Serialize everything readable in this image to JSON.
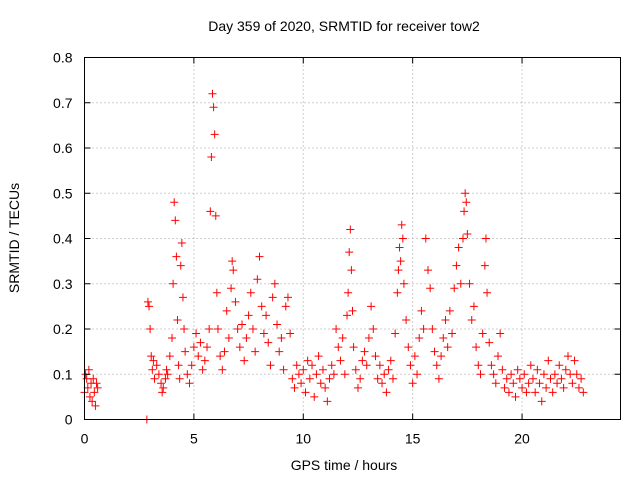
{
  "chart_data": {
    "type": "scatter",
    "title": "Day 359 of 2020, SRMTID for receiver tow2",
    "xlabel": "GPS time / hours",
    "ylabel": "SRMTID / TECUs",
    "xlim": [
      0,
      24.5
    ],
    "ylim": [
      0,
      0.8
    ],
    "x_ticks": [
      {
        "value": 0,
        "label": "0"
      },
      {
        "value": 5,
        "label": "5"
      },
      {
        "value": 10,
        "label": "10"
      },
      {
        "value": 15,
        "label": "15"
      },
      {
        "value": 20,
        "label": "20"
      }
    ],
    "y_ticks": [
      {
        "value": 0,
        "label": "0"
      },
      {
        "value": 0.1,
        "label": "0.1"
      },
      {
        "value": 0.2,
        "label": "0.2"
      },
      {
        "value": 0.3,
        "label": "0.3"
      },
      {
        "value": 0.4,
        "label": "0.4"
      },
      {
        "value": 0.5,
        "label": "0.5"
      },
      {
        "value": 0.6,
        "label": "0.6"
      },
      {
        "value": 0.7,
        "label": "0.7"
      },
      {
        "value": 0.8,
        "label": "0.8"
      }
    ],
    "grid": true,
    "marker": "plus",
    "series": [
      {
        "name": "SRMTID",
        "color": "#ff0000",
        "points": [
          [
            0.0,
            0.06
          ],
          [
            0.05,
            0.1
          ],
          [
            0.1,
            0.09
          ],
          [
            0.15,
            0.07
          ],
          [
            0.2,
            0.11
          ],
          [
            0.25,
            0.05
          ],
          [
            0.3,
            0.08
          ],
          [
            0.35,
            0.04
          ],
          [
            0.4,
            0.09
          ],
          [
            0.45,
            0.06
          ],
          [
            0.5,
            0.03
          ],
          [
            0.55,
            0.08
          ],
          [
            0.6,
            0.07
          ],
          [
            2.85,
            0.0
          ],
          [
            2.9,
            0.26
          ],
          [
            2.95,
            0.25
          ],
          [
            3.0,
            0.2
          ],
          [
            3.05,
            0.14
          ],
          [
            3.1,
            0.11
          ],
          [
            3.15,
            0.13
          ],
          [
            3.2,
            0.09
          ],
          [
            3.3,
            0.12
          ],
          [
            3.4,
            0.1
          ],
          [
            3.5,
            0.08
          ],
          [
            3.55,
            0.06
          ],
          [
            3.6,
            0.07
          ],
          [
            3.7,
            0.09
          ],
          [
            3.75,
            0.11
          ],
          [
            3.8,
            0.1
          ],
          [
            3.9,
            0.14
          ],
          [
            4.0,
            0.18
          ],
          [
            4.05,
            0.3
          ],
          [
            4.1,
            0.48
          ],
          [
            4.15,
            0.44
          ],
          [
            4.2,
            0.36
          ],
          [
            4.25,
            0.22
          ],
          [
            4.3,
            0.12
          ],
          [
            4.35,
            0.09
          ],
          [
            4.4,
            0.34
          ],
          [
            4.45,
            0.39
          ],
          [
            4.5,
            0.27
          ],
          [
            4.55,
            0.2
          ],
          [
            4.6,
            0.15
          ],
          [
            4.7,
            0.1
          ],
          [
            4.8,
            0.08
          ],
          [
            4.9,
            0.12
          ],
          [
            5.0,
            0.16
          ],
          [
            5.1,
            0.19
          ],
          [
            5.2,
            0.14
          ],
          [
            5.3,
            0.17
          ],
          [
            5.4,
            0.11
          ],
          [
            5.5,
            0.13
          ],
          [
            5.6,
            0.16
          ],
          [
            5.7,
            0.2
          ],
          [
            5.75,
            0.46
          ],
          [
            5.8,
            0.58
          ],
          [
            5.85,
            0.72
          ],
          [
            5.9,
            0.69
          ],
          [
            5.95,
            0.63
          ],
          [
            6.0,
            0.45
          ],
          [
            6.05,
            0.28
          ],
          [
            6.1,
            0.2
          ],
          [
            6.2,
            0.14
          ],
          [
            6.3,
            0.11
          ],
          [
            6.4,
            0.15
          ],
          [
            6.5,
            0.24
          ],
          [
            6.6,
            0.18
          ],
          [
            6.7,
            0.29
          ],
          [
            6.75,
            0.35
          ],
          [
            6.8,
            0.33
          ],
          [
            6.9,
            0.26
          ],
          [
            7.0,
            0.2
          ],
          [
            7.1,
            0.16
          ],
          [
            7.2,
            0.21
          ],
          [
            7.3,
            0.13
          ],
          [
            7.4,
            0.18
          ],
          [
            7.5,
            0.23
          ],
          [
            7.6,
            0.28
          ],
          [
            7.7,
            0.2
          ],
          [
            7.8,
            0.15
          ],
          [
            7.9,
            0.31
          ],
          [
            8.0,
            0.36
          ],
          [
            8.1,
            0.25
          ],
          [
            8.2,
            0.19
          ],
          [
            8.3,
            0.23
          ],
          [
            8.4,
            0.17
          ],
          [
            8.5,
            0.12
          ],
          [
            8.6,
            0.27
          ],
          [
            8.7,
            0.3
          ],
          [
            8.8,
            0.21
          ],
          [
            8.9,
            0.15
          ],
          [
            9.0,
            0.18
          ],
          [
            9.1,
            0.11
          ],
          [
            9.2,
            0.25
          ],
          [
            9.3,
            0.27
          ],
          [
            9.4,
            0.19
          ],
          [
            9.5,
            0.09
          ],
          [
            9.6,
            0.07
          ],
          [
            9.7,
            0.12
          ],
          [
            9.8,
            0.1
          ],
          [
            9.9,
            0.08
          ],
          [
            10.0,
            0.11
          ],
          [
            10.1,
            0.06
          ],
          [
            10.2,
            0.13
          ],
          [
            10.3,
            0.09
          ],
          [
            10.4,
            0.12
          ],
          [
            10.5,
            0.05
          ],
          [
            10.6,
            0.1
          ],
          [
            10.7,
            0.14
          ],
          [
            10.8,
            0.08
          ],
          [
            10.9,
            0.11
          ],
          [
            11.0,
            0.07
          ],
          [
            11.1,
            0.04
          ],
          [
            11.2,
            0.09
          ],
          [
            11.3,
            0.12
          ],
          [
            11.4,
            0.1
          ],
          [
            11.5,
            0.2
          ],
          [
            11.6,
            0.16
          ],
          [
            11.7,
            0.13
          ],
          [
            11.8,
            0.18
          ],
          [
            11.9,
            0.1
          ],
          [
            12.0,
            0.23
          ],
          [
            12.05,
            0.28
          ],
          [
            12.1,
            0.37
          ],
          [
            12.15,
            0.42
          ],
          [
            12.2,
            0.33
          ],
          [
            12.25,
            0.24
          ],
          [
            12.3,
            0.16
          ],
          [
            12.4,
            0.11
          ],
          [
            12.5,
            0.07
          ],
          [
            12.6,
            0.09
          ],
          [
            12.7,
            0.13
          ],
          [
            12.8,
            0.15
          ],
          [
            12.9,
            0.12
          ],
          [
            13.0,
            0.18
          ],
          [
            13.1,
            0.25
          ],
          [
            13.2,
            0.2
          ],
          [
            13.3,
            0.14
          ],
          [
            13.4,
            0.09
          ],
          [
            13.5,
            0.12
          ],
          [
            13.6,
            0.08
          ],
          [
            13.7,
            0.1
          ],
          [
            13.8,
            0.06
          ],
          [
            13.9,
            0.11
          ],
          [
            14.0,
            0.13
          ],
          [
            14.1,
            0.09
          ],
          [
            14.2,
            0.19
          ],
          [
            14.3,
            0.28
          ],
          [
            14.35,
            0.33
          ],
          [
            14.4,
            0.38
          ],
          [
            14.45,
            0.35
          ],
          [
            14.5,
            0.43
          ],
          [
            14.55,
            0.4
          ],
          [
            14.6,
            0.3
          ],
          [
            14.7,
            0.22
          ],
          [
            14.8,
            0.16
          ],
          [
            14.9,
            0.12
          ],
          [
            15.0,
            0.08
          ],
          [
            15.1,
            0.14
          ],
          [
            15.2,
            0.1
          ],
          [
            15.3,
            0.18
          ],
          [
            15.4,
            0.24
          ],
          [
            15.5,
            0.2
          ],
          [
            15.6,
            0.4
          ],
          [
            15.7,
            0.33
          ],
          [
            15.8,
            0.29
          ],
          [
            15.9,
            0.2
          ],
          [
            16.0,
            0.15
          ],
          [
            16.1,
            0.12
          ],
          [
            16.2,
            0.09
          ],
          [
            16.3,
            0.14
          ],
          [
            16.4,
            0.18
          ],
          [
            16.5,
            0.22
          ],
          [
            16.6,
            0.16
          ],
          [
            16.7,
            0.24
          ],
          [
            16.8,
            0.19
          ],
          [
            16.9,
            0.29
          ],
          [
            17.0,
            0.34
          ],
          [
            17.1,
            0.38
          ],
          [
            17.2,
            0.3
          ],
          [
            17.3,
            0.4
          ],
          [
            17.35,
            0.46
          ],
          [
            17.4,
            0.5
          ],
          [
            17.45,
            0.48
          ],
          [
            17.5,
            0.41
          ],
          [
            17.6,
            0.3
          ],
          [
            17.7,
            0.22
          ],
          [
            17.8,
            0.25
          ],
          [
            17.9,
            0.16
          ],
          [
            18.0,
            0.12
          ],
          [
            18.1,
            0.1
          ],
          [
            18.2,
            0.19
          ],
          [
            18.3,
            0.34
          ],
          [
            18.35,
            0.4
          ],
          [
            18.4,
            0.28
          ],
          [
            18.5,
            0.17
          ],
          [
            18.6,
            0.12
          ],
          [
            18.7,
            0.1
          ],
          [
            18.8,
            0.08
          ],
          [
            18.9,
            0.14
          ],
          [
            19.0,
            0.19
          ],
          [
            19.1,
            0.11
          ],
          [
            19.2,
            0.07
          ],
          [
            19.3,
            0.09
          ],
          [
            19.4,
            0.06
          ],
          [
            19.5,
            0.1
          ],
          [
            19.6,
            0.08
          ],
          [
            19.7,
            0.05
          ],
          [
            19.8,
            0.11
          ],
          [
            19.9,
            0.09
          ],
          [
            20.0,
            0.07
          ],
          [
            20.1,
            0.1
          ],
          [
            20.2,
            0.06
          ],
          [
            20.3,
            0.08
          ],
          [
            20.4,
            0.12
          ],
          [
            20.5,
            0.09
          ],
          [
            20.6,
            0.06
          ],
          [
            20.7,
            0.11
          ],
          [
            20.8,
            0.08
          ],
          [
            20.9,
            0.04
          ],
          [
            21.0,
            0.1
          ],
          [
            21.1,
            0.07
          ],
          [
            21.2,
            0.13
          ],
          [
            21.3,
            0.09
          ],
          [
            21.4,
            0.06
          ],
          [
            21.5,
            0.1
          ],
          [
            21.6,
            0.08
          ],
          [
            21.7,
            0.12
          ],
          [
            21.8,
            0.09
          ],
          [
            21.9,
            0.07
          ],
          [
            22.0,
            0.11
          ],
          [
            22.1,
            0.14
          ],
          [
            22.2,
            0.1
          ],
          [
            22.3,
            0.08
          ],
          [
            22.4,
            0.13
          ],
          [
            22.5,
            0.1
          ],
          [
            22.6,
            0.07
          ],
          [
            22.7,
            0.09
          ],
          [
            22.8,
            0.06
          ]
        ]
      }
    ]
  }
}
